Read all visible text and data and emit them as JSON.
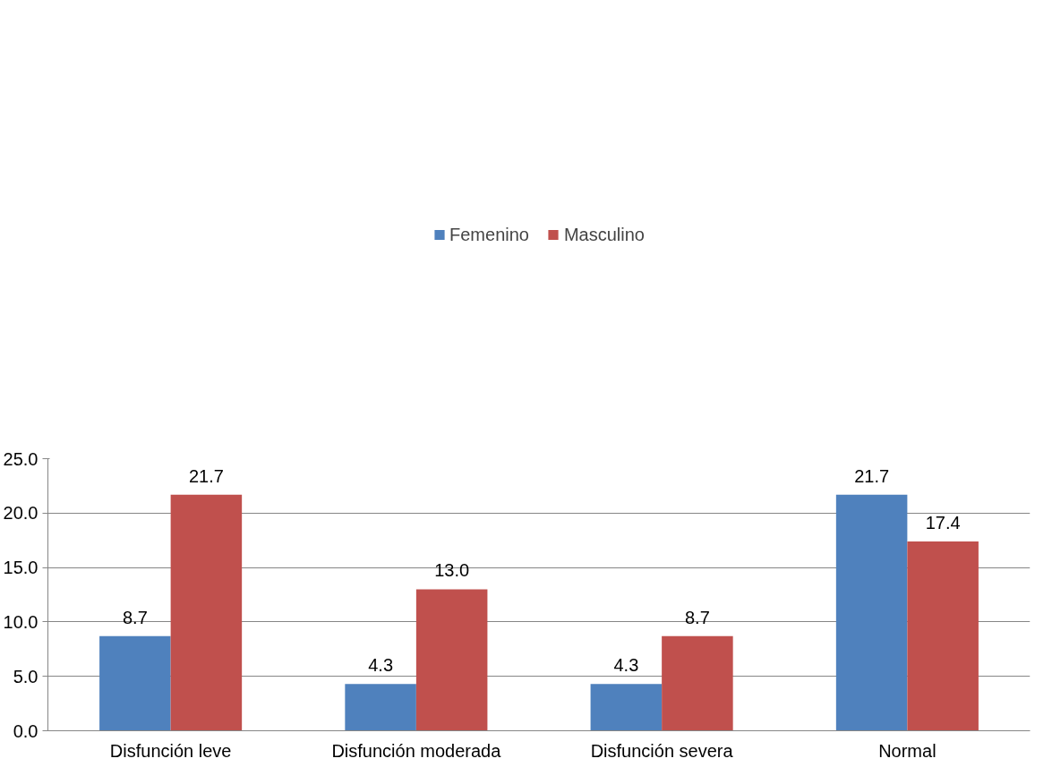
{
  "chart_data": {
    "type": "bar",
    "categories": [
      "Disfunción leve",
      "Disfunción moderada",
      "Disfunción severa",
      "Normal"
    ],
    "series": [
      {
        "name": "Femenino",
        "color": "#4f81bd",
        "values": [
          8.7,
          4.3,
          4.3,
          21.7
        ],
        "value_labels": [
          "8.7",
          "4.3",
          "4.3",
          "21.7"
        ]
      },
      {
        "name": "Masculino",
        "color": "#c0504d",
        "values": [
          21.7,
          13.0,
          8.7,
          17.4
        ],
        "value_labels": [
          "21.7",
          "13.0",
          "8.7",
          "17.4"
        ]
      }
    ],
    "ylim": [
      0,
      25
    ],
    "yticks": [
      {
        "value": 0,
        "label": "0.0"
      },
      {
        "value": 5,
        "label": "5.0"
      },
      {
        "value": 10,
        "label": "10.0"
      },
      {
        "value": 15,
        "label": "15.0"
      },
      {
        "value": 20,
        "label": "20.0"
      },
      {
        "value": 25,
        "label": "25.0"
      }
    ],
    "grid": "y",
    "legend": "top"
  }
}
